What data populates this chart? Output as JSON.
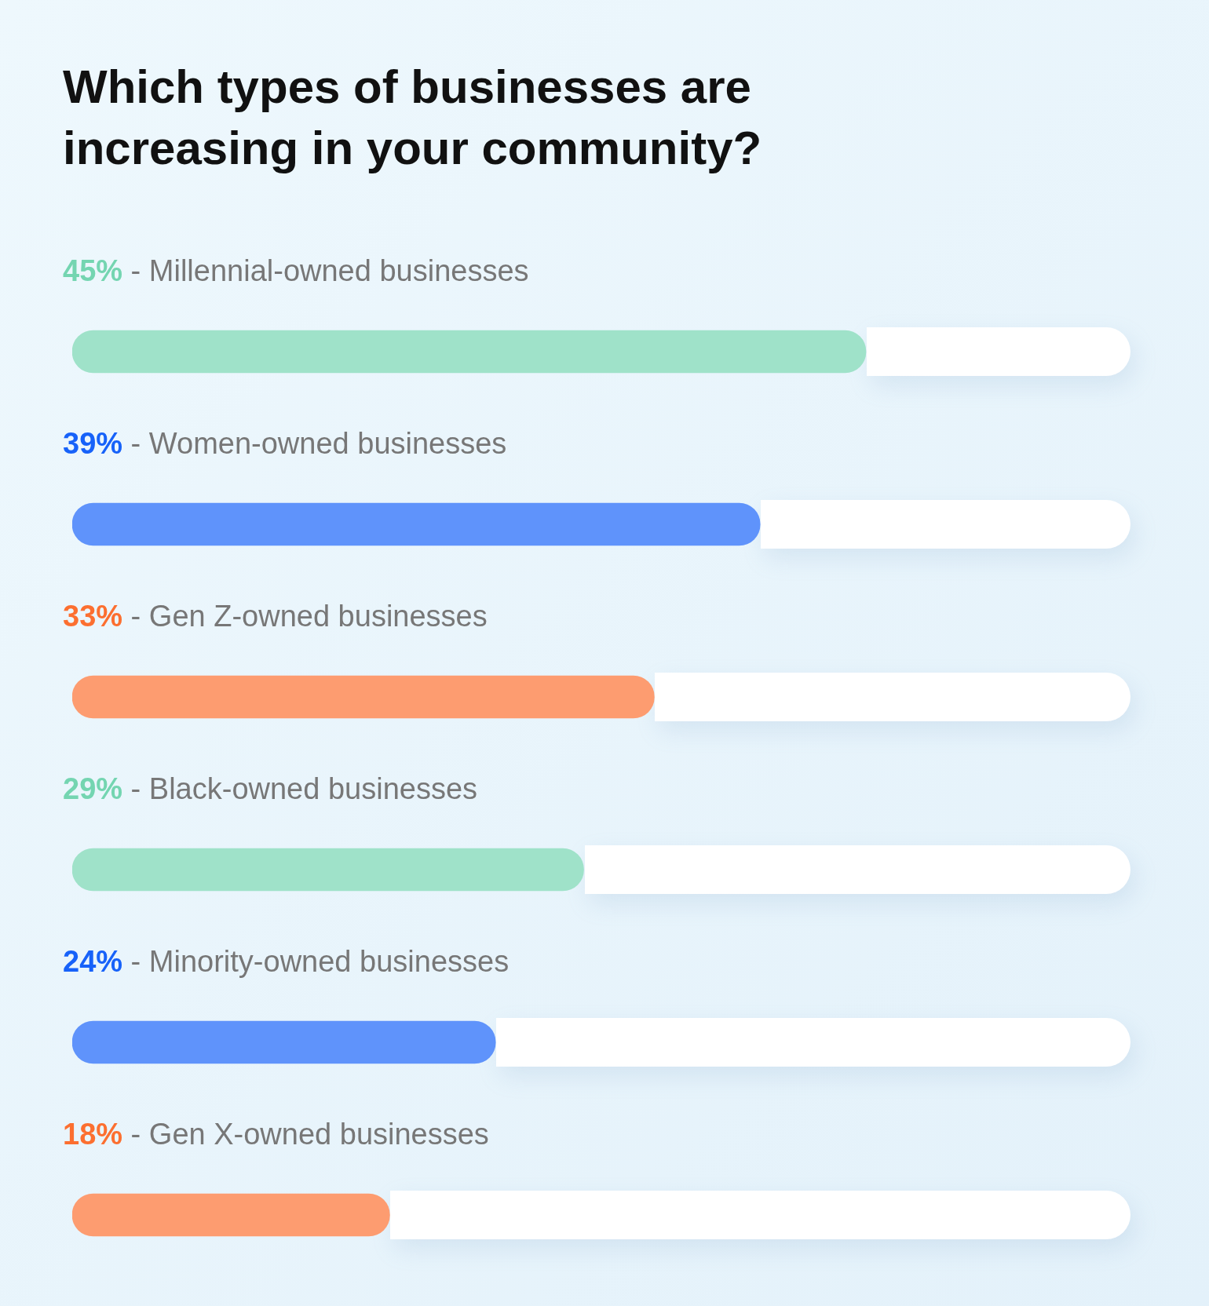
{
  "chart_data": {
    "type": "bar",
    "orientation": "horizontal",
    "title": "Which types of businesses are increasing in your community?",
    "categories": [
      "- Millennial-owned businesses",
      "- Women-owned businesses",
      "- Gen Z-owned businesses",
      "- Black-owned businesses",
      "- Minority-owned businesses",
      "- Gen X-owned businesses"
    ],
    "values": [
      45,
      39,
      33,
      29,
      24,
      18
    ],
    "colors": [
      "#9fe2c9",
      "#5f93fb",
      "#fd9c70",
      "#9fe2c9",
      "#5f93fb",
      "#fd9c70"
    ],
    "value_labels": [
      "45%",
      "39%",
      "33%",
      "29%",
      "24%",
      "18%"
    ]
  }
}
